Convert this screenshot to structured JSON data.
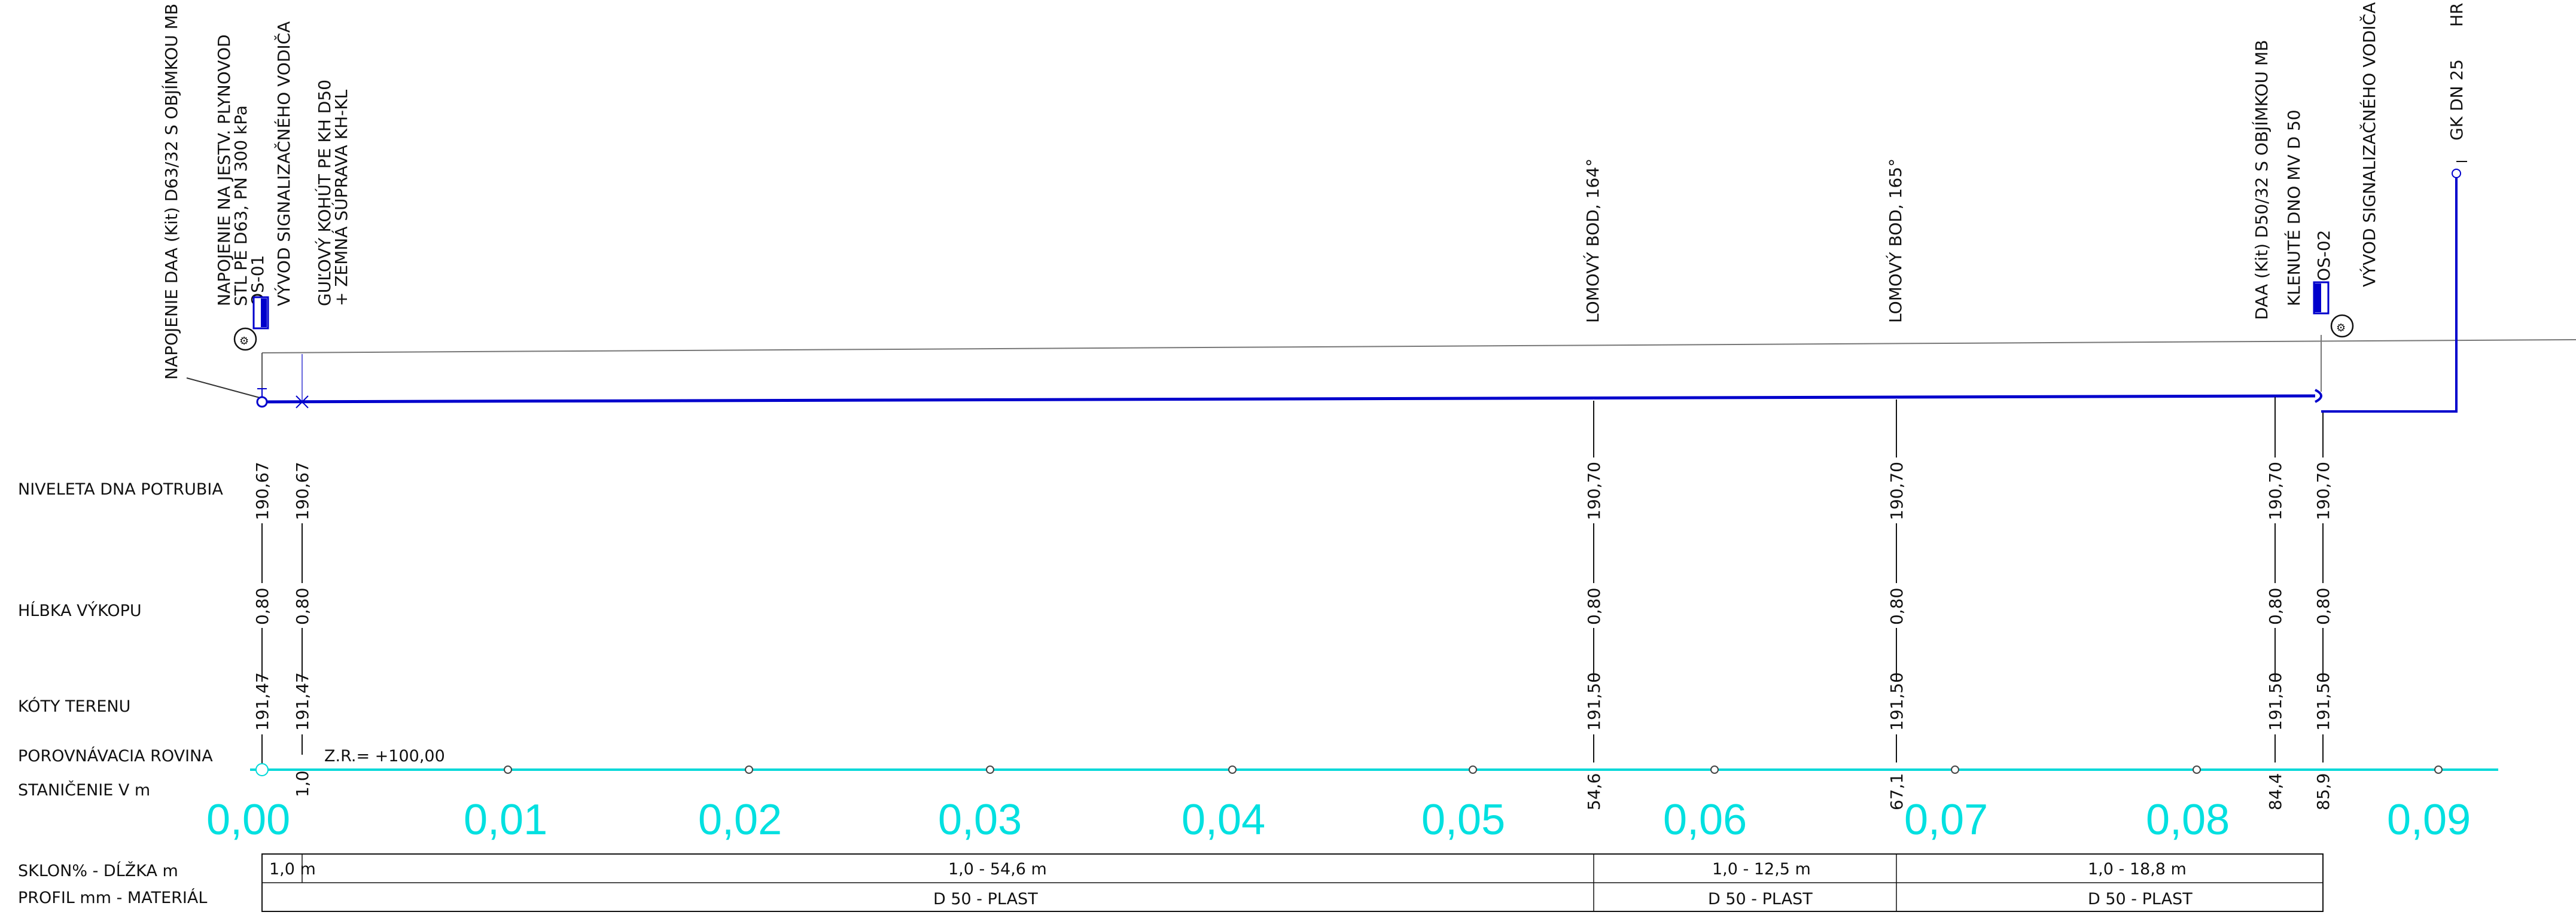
{
  "colors": {
    "pipe": "#0000cc",
    "datum": "#00d8d8",
    "ink": "#111111",
    "terrain": "#777777"
  },
  "row_labels": {
    "niveleta": "NIVELETA DNA POTRUBIA",
    "hlbka": "HĹBKA VÝKOPU",
    "koty": "KÓTY TERENU",
    "porovnavacia": "POROVNÁVACIA ROVINA",
    "stanicenie": "STANIČENIE V m",
    "sklon": "SKLON% - DĹŽKA m",
    "profil": "PROFIL mm - MATERIÁL"
  },
  "datum_level": "Z.R.= +100,00",
  "top_annotations": {
    "a1": "NAPOJENIE DAA (Kit) D63/32 S OBJÍMKOU MB",
    "a2": "NAPOJENIE NA JESTV. PLYNOVOD",
    "a3": "STL PE D63, PN 300 kPa",
    "a4": "OS-01",
    "a5": "VÝVOD SIGNALIZAČNÉHO VODIČA",
    "a6": "GUĽOVÝ KOHÚT PE KH D50",
    "a7": "+ ZEMNÁ SÚPRAVA KH-KL",
    "a8": "LOMOVÝ BOD, 164°",
    "a9": "LOMOVÝ BOD, 165°",
    "a10": "DAA (Kit) D50/32 S OBJÍMKOU MB",
    "a11": "KLENUTÉ DNO MV D 50",
    "a12": "OS-02",
    "a13": "VÝVOD SIGNALIZAČNÉHO VODIČA",
    "a14": "GK DN 25",
    "a15": "HR"
  },
  "points": [
    {
      "niveleta": "190,67",
      "hlbka": "0,80",
      "koty": "191,47",
      "stanicenie": ""
    },
    {
      "niveleta": "190,67",
      "hlbka": "0,80",
      "koty": "191,47",
      "stanicenie": "1,0"
    },
    {
      "niveleta": "190,70",
      "hlbka": "0,80",
      "koty": "191,50",
      "stanicenie": "54,6"
    },
    {
      "niveleta": "190,70",
      "hlbka": "0,80",
      "koty": "191,50",
      "stanicenie": "67,1"
    },
    {
      "niveleta": "190,70",
      "hlbka": "0,80",
      "koty": "191,50",
      "stanicenie": "84,4"
    },
    {
      "niveleta": "190,70",
      "hlbka": "0,80",
      "koty": "191,50",
      "stanicenie": "85,9"
    }
  ],
  "stationing_major": [
    "0,00",
    "0,01",
    "0,02",
    "0,03",
    "0,04",
    "0,05",
    "0,06",
    "0,07",
    "0,08",
    "0,09"
  ],
  "segments": [
    {
      "sklon": "1,0 m",
      "profil": ""
    },
    {
      "sklon": "1,0  - 54,6 m",
      "profil": "D 50 - PLAST"
    },
    {
      "sklon": "1,0  - 12,5 m",
      "profil": "D 50 - PLAST"
    },
    {
      "sklon": "1,0  - 18,8 m",
      "profil": "D 50 - PLAST"
    }
  ]
}
